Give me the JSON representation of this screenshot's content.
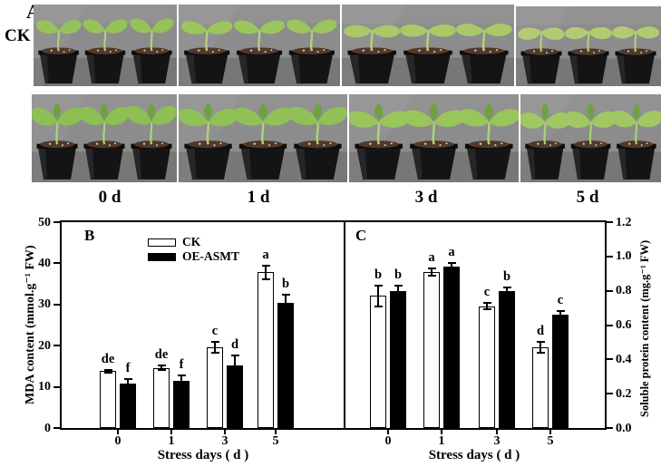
{
  "figure": {
    "panel_label_a": "A",
    "row1_label": "CK",
    "day_labels": [
      "0 d",
      "1 d",
      "3 d",
      "5 d"
    ]
  },
  "chart_data": [
    {
      "type": "bar",
      "panel": "B",
      "title": "",
      "xlabel": "Stress days ( d )",
      "ylabel": "MDA content (mmol.g⁻¹ FW)",
      "yaxis_side": "left",
      "ylim": [
        0,
        50
      ],
      "yticks": [
        "0",
        "10",
        "20",
        "30",
        "40",
        "50"
      ],
      "categories": [
        "0",
        "1",
        "3",
        "5"
      ],
      "grid": false,
      "legend_position": "top-center",
      "series": [
        {
          "name": "CK",
          "fill": "#ffffff",
          "values": [
            13.8,
            14.6,
            19.6,
            37.8
          ],
          "errors": [
            0.4,
            0.5,
            1.4,
            1.7
          ],
          "sig_letters": [
            "de",
            "de",
            "c",
            "a"
          ]
        },
        {
          "name": "OE-ASMT",
          "fill": "#000000",
          "values": [
            10.7,
            11.5,
            15.1,
            30.5
          ],
          "errors": [
            1.2,
            1.3,
            2.5,
            1.8
          ],
          "sig_letters": [
            "f",
            "f",
            "d",
            "b"
          ]
        }
      ]
    },
    {
      "type": "bar",
      "panel": "C",
      "title": "",
      "xlabel": "Stress days ( d )",
      "ylabel": "Soluble protein content (mg.g⁻¹ FW)",
      "yaxis_side": "right",
      "ylim": [
        0,
        1.2
      ],
      "yticks": [
        "0.0",
        "0.2",
        "0.4",
        "0.6",
        "0.8",
        "1.0",
        "1.2"
      ],
      "categories": [
        "0",
        "1",
        "3",
        "5"
      ],
      "grid": false,
      "series": [
        {
          "name": "CK",
          "fill": "#ffffff",
          "values": [
            0.77,
            0.91,
            0.71,
            0.47
          ],
          "errors": [
            0.06,
            0.02,
            0.02,
            0.03
          ],
          "sig_letters": [
            "b",
            "a",
            "c",
            "d"
          ]
        },
        {
          "name": "OE-ASMT",
          "fill": "#000000",
          "values": [
            0.8,
            0.94,
            0.8,
            0.66
          ],
          "errors": [
            0.03,
            0.02,
            0.02,
            0.02
          ],
          "sig_letters": [
            "b",
            "a",
            "b",
            "c"
          ]
        }
      ]
    }
  ]
}
